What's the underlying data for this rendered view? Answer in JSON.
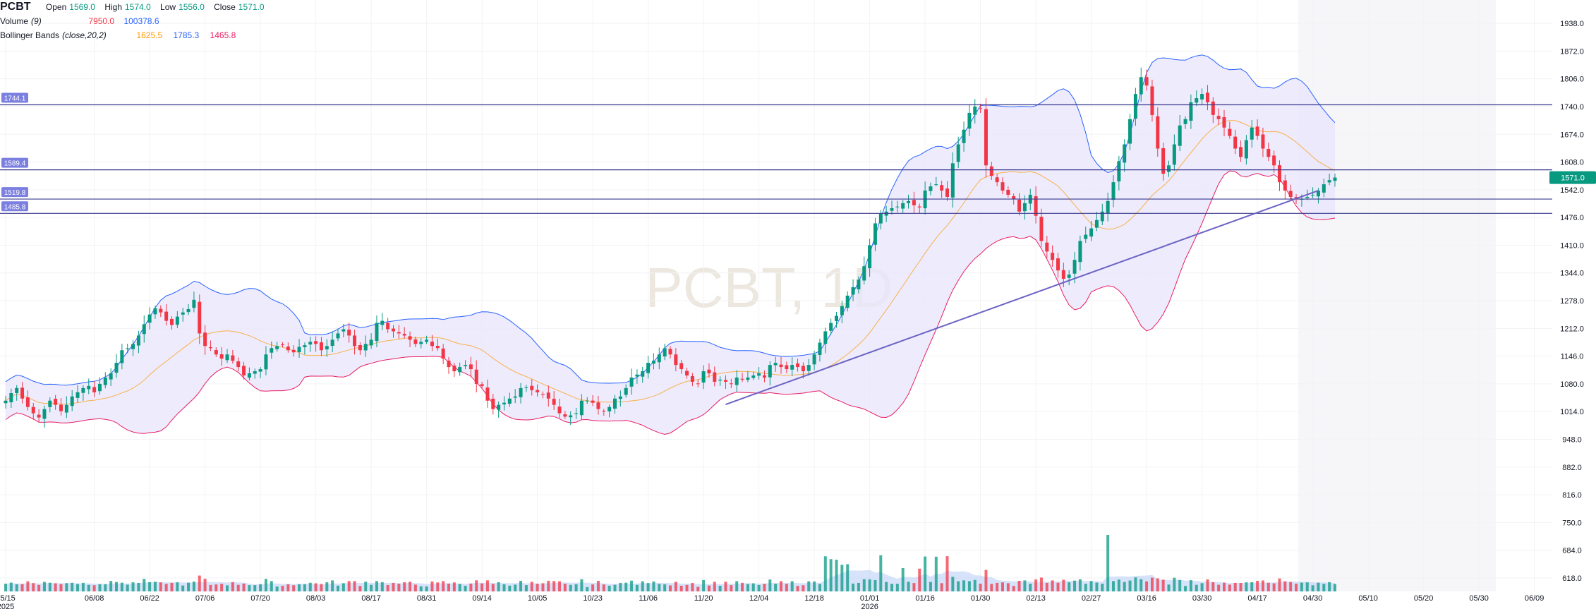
{
  "header": {
    "symbol": "PCBT",
    "ohlc": [
      {
        "label": "Open",
        "value": "1569.0"
      },
      {
        "label": "High",
        "value": "1574.0"
      },
      {
        "label": "Low",
        "value": "1556.0"
      },
      {
        "label": "Close",
        "value": "1571.0"
      }
    ]
  },
  "volume_legend": {
    "name": "Volume",
    "param": "(9)",
    "value": "7950.0",
    "ma_value": "100378.6"
  },
  "bb_legend": {
    "name": "Bollinger Bands",
    "param": "(close,20,2)",
    "basis": "1625.5",
    "upper": "1785.3",
    "lower": "1465.8"
  },
  "watermark": "PCBT, 1D",
  "colors": {
    "up": "#089981",
    "down": "#f23645",
    "bb_upper": "#2962ff",
    "bb_lower": "#e91e63",
    "bb_basis": "#ff9800",
    "bb_fill": "#e8e6fb",
    "hline": "#3b3a8f",
    "trendline": "#6b63c4",
    "price_tag": "#089981",
    "hline_tag": "#7b7fe0"
  },
  "chart_data": {
    "type": "candlestick",
    "ylim": [
      586,
      1960
    ],
    "y_axis_ticks": [
      "1938.0",
      "1872.0",
      "1806.0",
      "1740.0",
      "1674.0",
      "1608.0",
      "1542.0",
      "1476.0",
      "1410.0",
      "1344.0",
      "1278.0",
      "1212.0",
      "1146.0",
      "1080.0",
      "1014.0",
      "948.0",
      "882.0",
      "816.0",
      "750.0",
      "684.0",
      "618.0"
    ],
    "x_axis_ticks": [
      {
        "label": "05/15",
        "sub": "2025",
        "i": 0
      },
      {
        "label": "06/08",
        "i": 16
      },
      {
        "label": "06/22",
        "i": 26
      },
      {
        "label": "07/06",
        "i": 36
      },
      {
        "label": "07/20",
        "i": 46
      },
      {
        "label": "08/03",
        "i": 56
      },
      {
        "label": "08/17",
        "i": 66
      },
      {
        "label": "08/31",
        "i": 76
      },
      {
        "label": "09/14",
        "i": 86
      },
      {
        "label": "10/05",
        "i": 96
      },
      {
        "label": "10/23",
        "i": 106
      },
      {
        "label": "11/06",
        "i": 116
      },
      {
        "label": "11/20",
        "i": 126
      },
      {
        "label": "12/04",
        "i": 136
      },
      {
        "label": "12/18",
        "i": 146
      },
      {
        "label": "01/01",
        "sub": "2026",
        "i": 156
      },
      {
        "label": "01/16",
        "i": 166
      },
      {
        "label": "01/30",
        "i": 176
      },
      {
        "label": "02/13",
        "i": 186
      },
      {
        "label": "02/27",
        "i": 196
      },
      {
        "label": "03/16",
        "i": 206
      },
      {
        "label": "03/30",
        "i": 216
      },
      {
        "label": "04/17",
        "i": 226
      },
      {
        "label": "04/30",
        "i": 236
      },
      {
        "label": "05/10",
        "i": 246
      },
      {
        "label": "05/20",
        "i": 256
      },
      {
        "label": "05/30",
        "i": 266
      },
      {
        "label": "06/09",
        "i": 276
      }
    ],
    "horizontal_lines": [
      {
        "price": 1744.1,
        "label": "1744.1"
      },
      {
        "price": 1589.4,
        "label": "1589.4"
      },
      {
        "price": 1519.8,
        "label": "1519.8"
      },
      {
        "price": 1485.8,
        "label": "1485.8"
      }
    ],
    "trendline": {
      "i1": 130,
      "p1": 1031,
      "i2": 237,
      "p2": 1540
    },
    "last_price": "1571.0",
    "closes": [
      1040,
      1058,
      1070,
      1045,
      1025,
      1010,
      1000,
      1020,
      1040,
      1030,
      1015,
      1030,
      1050,
      1060,
      1070,
      1075,
      1060,
      1080,
      1095,
      1105,
      1130,
      1160,
      1165,
      1175,
      1195,
      1222,
      1245,
      1260,
      1250,
      1230,
      1220,
      1240,
      1250,
      1258,
      1280,
      1200,
      1170,
      1165,
      1150,
      1140,
      1150,
      1135,
      1120,
      1100,
      1105,
      1110,
      1115,
      1150,
      1165,
      1170,
      1172,
      1160,
      1155,
      1168,
      1172,
      1180,
      1175,
      1160,
      1170,
      1185,
      1200,
      1210,
      1195,
      1170,
      1160,
      1175,
      1185,
      1225,
      1230,
      1210,
      1205,
      1200,
      1195,
      1185,
      1175,
      1180,
      1185,
      1170,
      1165,
      1140,
      1120,
      1110,
      1120,
      1125,
      1115,
      1080,
      1075,
      1040,
      1020,
      1030,
      1035,
      1045,
      1050,
      1070,
      1072,
      1065,
      1060,
      1055,
      1045,
      1030,
      1010,
      1002,
      1005,
      1010,
      1040,
      1040,
      1035,
      1020,
      1015,
      1025,
      1045,
      1050,
      1070,
      1095,
      1102,
      1110,
      1130,
      1135,
      1150,
      1165,
      1150,
      1125,
      1115,
      1100,
      1085,
      1080,
      1110,
      1105,
      1085,
      1090,
      1085,
      1080,
      1095,
      1090,
      1095,
      1100,
      1105,
      1095,
      1125,
      1130,
      1120,
      1115,
      1125,
      1120,
      1110,
      1125,
      1150,
      1178,
      1205,
      1225,
      1242,
      1265,
      1290,
      1310,
      1328,
      1360,
      1410,
      1462,
      1485,
      1490,
      1498,
      1502,
      1510,
      1515,
      1505,
      1500,
      1540,
      1550,
      1555,
      1540,
      1525,
      1605,
      1650,
      1685,
      1725,
      1740,
      1735,
      1600,
      1575,
      1560,
      1540,
      1530,
      1520,
      1490,
      1510,
      1530,
      1480,
      1420,
      1395,
      1375,
      1350,
      1330,
      1340,
      1375,
      1420,
      1435,
      1450,
      1470,
      1490,
      1515,
      1560,
      1610,
      1650,
      1710,
      1770,
      1810,
      1790,
      1720,
      1640,
      1580,
      1600,
      1650,
      1695,
      1710,
      1750,
      1760,
      1770,
      1750,
      1720,
      1710,
      1690,
      1670,
      1640,
      1620,
      1660,
      1690,
      1670,
      1640,
      1620,
      1600,
      1560,
      1540,
      1525,
      1520,
      1520,
      1525,
      1530,
      1540,
      1555,
      1565,
      1571
    ]
  }
}
